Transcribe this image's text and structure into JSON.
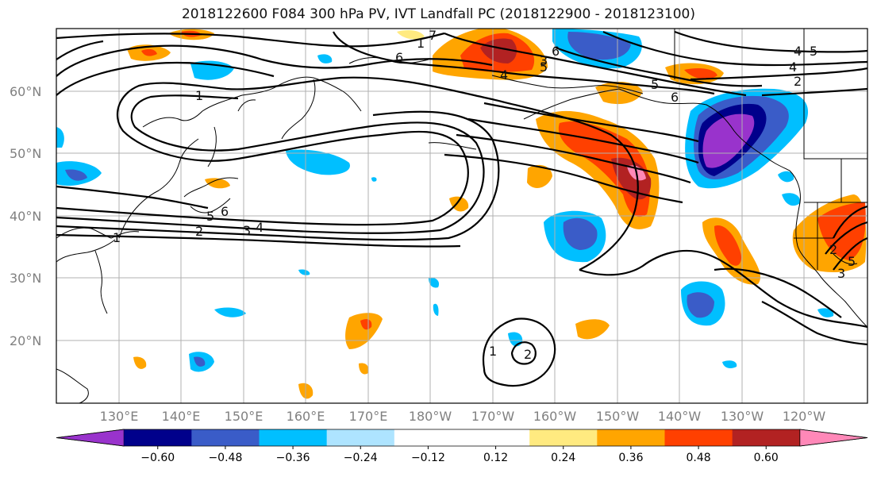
{
  "title": "2018122600 F084 300 hPa PV, IVT Landfall PC (2018122900 - 2018123100)",
  "lat_labels": [
    "60°N",
    "50°N",
    "40°N",
    "30°N",
    "20°N"
  ],
  "lon_labels": [
    "130°E",
    "140°E",
    "150°E",
    "160°E",
    "170°E",
    "180°W",
    "170°W",
    "160°W",
    "150°W",
    "140°W",
    "130°W",
    "120°W"
  ],
  "colorbar": {
    "colors": [
      "#9933cc",
      "#00008b",
      "#3a5cc8",
      "#00bfff",
      "#aee4ff",
      "#ffffff",
      "#ffffff",
      "#ffea80",
      "#ffa500",
      "#ff4000",
      "#b22222",
      "#ff88b8"
    ],
    "tick_labels": [
      "−0.60",
      "−0.48",
      "−0.36",
      "−0.24",
      "−0.12",
      "0.12",
      "0.24",
      "0.36",
      "0.48",
      "0.60"
    ]
  },
  "contour_labels": [
    "1",
    "6",
    "7",
    "5",
    "1",
    "4",
    "6",
    "5",
    "6",
    "2",
    "3",
    "4",
    "5",
    "6",
    "5",
    "2",
    "3",
    "4",
    "1",
    "1",
    "2",
    "4",
    "5",
    "3",
    "2"
  ]
}
